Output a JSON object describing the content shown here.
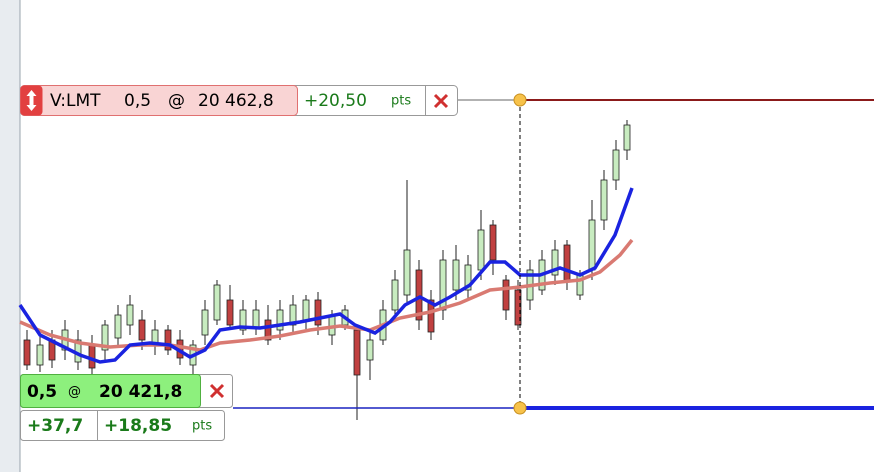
{
  "sell_order": {
    "label": "V:LMT",
    "quantity": "0,5",
    "at": "@",
    "price": "20 462,8",
    "pnl": "+20,50",
    "unit": "pts"
  },
  "position": {
    "quantity": "0,5",
    "at": "@",
    "price": "20 421,8",
    "pnl_price": "+37,7",
    "pnl_points": "+18,85",
    "unit": "pts"
  }
}
